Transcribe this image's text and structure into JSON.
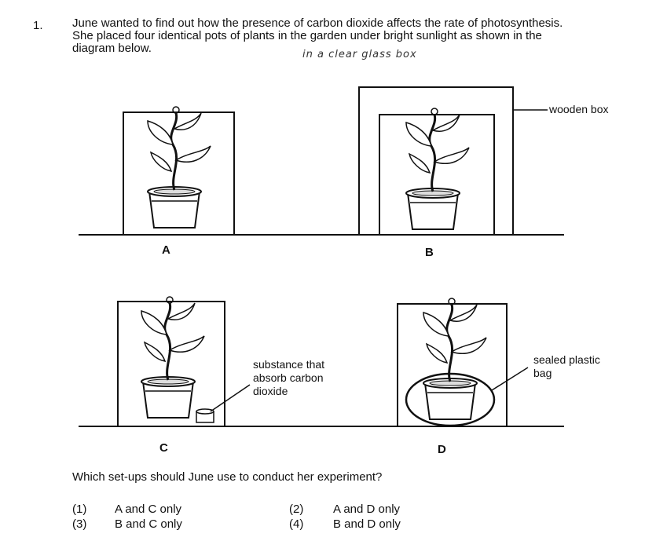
{
  "question": {
    "number": "1.",
    "stem_lines": [
      "June wanted to find out how the presence of carbon dioxide affects the rate of photosynthesis.",
      "She placed four identical pots of plants in the garden under bright sunlight as shown in the",
      "diagram below."
    ],
    "handwritten_note": "in a clear glass box",
    "prompt": "Which set-ups should June use to conduct her experiment?"
  },
  "diagram": {
    "setups": [
      {
        "letter": "A"
      },
      {
        "letter": "B",
        "label": "wooden box"
      },
      {
        "letter": "C",
        "label_lines": [
          "substance that",
          "absorb carbon",
          "dioxide"
        ]
      },
      {
        "letter": "D",
        "label_lines": [
          "sealed plastic",
          "bag"
        ]
      }
    ]
  },
  "options": [
    {
      "num": "(1)",
      "text": "A and C only"
    },
    {
      "num": "(2)",
      "text": "A and D only"
    },
    {
      "num": "(3)",
      "text": "B and C only"
    },
    {
      "num": "(4)",
      "text": "B and D only"
    }
  ]
}
